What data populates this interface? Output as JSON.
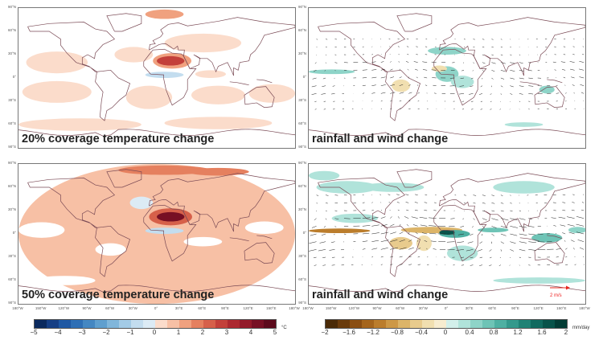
{
  "panels": [
    {
      "label": "20% coverage temperature change",
      "variable": "temperature"
    },
    {
      "label": "rainfall and wind change",
      "variable": "rainfall-wind"
    },
    {
      "label": "50% coverage temperature change",
      "variable": "temperature"
    },
    {
      "label": "rainfall and wind change",
      "variable": "rainfall-wind"
    }
  ],
  "lat_ticks": [
    "90°N",
    "60°N",
    "30°N",
    "0°",
    "30°S",
    "60°S",
    "90°S"
  ],
  "lon_ticks": [
    "180°W",
    "150°W",
    "120°W",
    "90°W",
    "60°W",
    "30°W",
    "0°",
    "30°E",
    "60°E",
    "90°E",
    "120°E",
    "150°E",
    "180°W"
  ],
  "wind_reference": {
    "label": "2 m/s",
    "color": "#e8281e"
  },
  "temperature_colorbar": {
    "ticks": [
      "−5",
      "−4",
      "−3",
      "−2",
      "−1",
      "0",
      "1",
      "2",
      "3",
      "4",
      "5"
    ],
    "unit": "°C",
    "colors": [
      "#0b2a5e",
      "#163f85",
      "#1f58a3",
      "#2e6fb5",
      "#4487c2",
      "#5f9fcf",
      "#80b6db",
      "#a3cbe6",
      "#c3ddef",
      "#dcebf5",
      "#fbdccb",
      "#f7c0a5",
      "#f0a17f",
      "#e5805f",
      "#d6604a",
      "#c3403a",
      "#ac2830",
      "#931a2a",
      "#771024",
      "#5c0a1c"
    ]
  },
  "rainfall_colorbar": {
    "ticks": [
      "−2",
      "−1.6",
      "−1.2",
      "−0.8",
      "−0.4",
      "0",
      "0.4",
      "0.8",
      "1.2",
      "1.6",
      "2"
    ],
    "unit": "mm/day",
    "colors": [
      "#4a2a07",
      "#6a3b0c",
      "#8a4e12",
      "#a5651c",
      "#bb7d2c",
      "#cd9846",
      "#dcb468",
      "#e8cb8d",
      "#f1dfb0",
      "#f7ecd0",
      "#d2efea",
      "#b0e3da",
      "#8ed4c8",
      "#6ec4b6",
      "#4eb0a2",
      "#34998c",
      "#1f8275",
      "#116a5f",
      "#08534a",
      "#033c35"
    ]
  }
}
